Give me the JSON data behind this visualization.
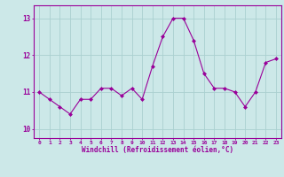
{
  "x": [
    0,
    1,
    2,
    3,
    4,
    5,
    6,
    7,
    8,
    9,
    10,
    11,
    12,
    13,
    14,
    15,
    16,
    17,
    18,
    19,
    20,
    21,
    22,
    23
  ],
  "y": [
    11.0,
    10.8,
    10.6,
    10.4,
    10.8,
    10.8,
    11.1,
    11.1,
    10.9,
    11.1,
    10.8,
    11.7,
    12.5,
    13.0,
    13.0,
    12.4,
    11.5,
    11.1,
    11.1,
    11.0,
    10.6,
    11.0,
    11.8,
    11.9
  ],
  "line_color": "#990099",
  "marker": "D",
  "marker_size": 2,
  "bg_color": "#cce8e8",
  "grid_color": "#aad0d0",
  "xlabel": "Windchill (Refroidissement éolien,°C)",
  "xlabel_color": "#990099",
  "tick_color": "#990099",
  "axis_color": "#990099",
  "ylabel_ticks": [
    10,
    11,
    12,
    13
  ],
  "ylim": [
    9.75,
    13.35
  ],
  "xlim": [
    -0.5,
    23.5
  ],
  "xtick_labels": [
    "0",
    "1",
    "2",
    "3",
    "4",
    "5",
    "6",
    "7",
    "8",
    "9",
    "10",
    "11",
    "12",
    "13",
    "14",
    "15",
    "16",
    "17",
    "18",
    "19",
    "20",
    "21",
    "22",
    "23"
  ]
}
